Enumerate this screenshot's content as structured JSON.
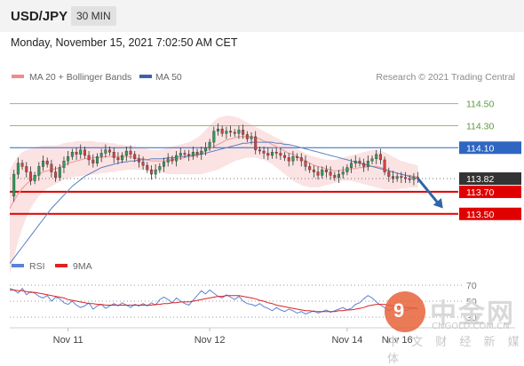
{
  "header": {
    "pair": "USD/JPY",
    "timeframe": "30 MIN",
    "datetime": "Monday, November 15, 2021 7:02:50 AM CET"
  },
  "legend": {
    "items": [
      {
        "label": "MA 20 + Bollinger Bands",
        "color": "#f28b8b"
      },
      {
        "label": "MA 50",
        "color": "#3a62a8"
      }
    ],
    "credit": "Research © 2021 Trading Central"
  },
  "colors": {
    "up_candle": "#2e9e5a",
    "down_candle": "#d94040",
    "band_fill": "#fbe0e0",
    "ma20": "#f0a0a0",
    "ma50": "#5a7fc0",
    "resistance_green": "#8cc06a",
    "pivot_blue": "#2f66c2",
    "support_red": "#e00000",
    "current_price": "#333333",
    "arrow": "#2f66a8",
    "rsi": "#5b82d6",
    "rsi_ma": "#dd2222"
  },
  "chart_data": [
    {
      "type": "candlestick",
      "instrument": "USD/JPY",
      "ylim": [
        113.2,
        114.65
      ],
      "x_range": [
        0,
        100
      ],
      "x_ticks": [
        {
          "label": "Nov 11",
          "x": 14
        },
        {
          "label": "Nov 12",
          "x": 48
        },
        {
          "label": "Nov 14",
          "x": 81
        },
        {
          "label": "Nov 16",
          "x": 93
        }
      ],
      "levels": [
        {
          "value": 114.5,
          "label": "114.50",
          "role": "resistance",
          "color": "#8cc06a",
          "style": "thin"
        },
        {
          "value": 114.3,
          "label": "114.30",
          "role": "resistance",
          "color": "#8cc06a",
          "style": "thin"
        },
        {
          "value": 114.1,
          "label": "114.10",
          "role": "pivot",
          "color": "#2f66c2",
          "style": "thin"
        },
        {
          "value": 113.82,
          "label": "113.82",
          "role": "current",
          "color": "#333333",
          "style": "dotted"
        },
        {
          "value": 113.7,
          "label": "113.70",
          "role": "support",
          "color": "#e00000",
          "style": "thick"
        },
        {
          "value": 113.5,
          "label": "113.50",
          "role": "support",
          "color": "#e00000",
          "style": "thick"
        }
      ],
      "close": [
        113.66,
        113.86,
        113.96,
        113.93,
        113.88,
        113.8,
        113.85,
        113.93,
        113.98,
        113.95,
        113.88,
        113.83,
        113.92,
        113.98,
        114.02,
        114.06,
        114.04,
        114.08,
        114.03,
        113.99,
        113.96,
        114.02,
        114.05,
        114.08,
        114.06,
        114.01,
        113.99,
        114.03,
        114.07,
        114.04,
        114.0,
        113.97,
        113.94,
        113.9,
        113.86,
        113.9,
        113.93,
        113.97,
        114.0,
        113.98,
        114.03,
        114.05,
        114.04,
        114.03,
        114.06,
        114.04,
        114.07,
        114.1,
        114.15,
        114.25,
        114.27,
        114.23,
        114.25,
        114.24,
        114.23,
        114.26,
        114.22,
        114.18,
        114.2,
        114.08,
        114.07,
        114.05,
        114.03,
        114.06,
        114.05,
        114.03,
        114.01,
        113.98,
        114.02,
        114.01,
        113.98,
        113.93,
        113.9,
        113.88,
        113.85,
        113.9,
        113.88,
        113.85,
        113.83,
        113.86,
        113.88,
        113.92,
        113.96,
        113.98,
        113.96,
        113.93,
        113.98,
        114.0,
        114.04,
        113.99,
        113.88,
        113.84,
        113.82,
        113.84,
        113.83,
        113.82,
        113.81,
        113.83,
        113.82
      ],
      "ma20": [
        113.55,
        113.62,
        113.68,
        113.73,
        113.77,
        113.8,
        113.83,
        113.86,
        113.88,
        113.89,
        113.9,
        113.91,
        113.92,
        113.94,
        113.96,
        113.97,
        113.98,
        113.99,
        114.0,
        114.0,
        114.01,
        114.01,
        114.01,
        114.02,
        114.02,
        114.02,
        114.02,
        114.02,
        114.02,
        114.02,
        114.01,
        114.0,
        114.0,
        113.99,
        113.98,
        113.98,
        113.98,
        113.98,
        113.98,
        113.99,
        114.0,
        114.0,
        114.01,
        114.02,
        114.02,
        114.03,
        114.05,
        114.07,
        114.09,
        114.11,
        114.13,
        114.15,
        114.17,
        114.18,
        114.19,
        114.2,
        114.2,
        114.2,
        114.2,
        114.19,
        114.18,
        114.16,
        114.15,
        114.13,
        114.11,
        114.09,
        114.07,
        114.05,
        114.04,
        114.02,
        114.0,
        113.98,
        113.96,
        113.94,
        113.93,
        113.92,
        113.91,
        113.9,
        113.89,
        113.89,
        113.9,
        113.9,
        113.91,
        113.91,
        113.92,
        113.92,
        113.93,
        113.93,
        113.93,
        113.92,
        113.91,
        113.89,
        113.88,
        113.87,
        113.86,
        113.85,
        113.85,
        113.84,
        113.84
      ],
      "ma50": [
        113.05,
        113.1,
        113.15,
        113.2,
        113.25,
        113.3,
        113.35,
        113.4,
        113.45,
        113.5,
        113.55,
        113.59,
        113.63,
        113.67,
        113.71,
        113.75,
        113.78,
        113.81,
        113.84,
        113.86,
        113.88,
        113.9,
        113.92,
        113.93,
        113.94,
        113.95,
        113.96,
        113.97,
        113.97,
        113.98,
        113.98,
        113.99,
        113.99,
        113.99,
        114.0,
        114.0,
        114.0,
        114.0,
        114.01,
        114.01,
        114.01,
        114.02,
        114.02,
        114.03,
        114.03,
        114.04,
        114.04,
        114.05,
        114.06,
        114.07,
        114.08,
        114.09,
        114.1,
        114.11,
        114.12,
        114.13,
        114.14,
        114.14,
        114.15,
        114.15,
        114.15,
        114.15,
        114.15,
        114.15,
        114.14,
        114.14,
        114.13,
        114.13,
        114.12,
        114.11,
        114.1,
        114.09,
        114.08,
        114.07,
        114.06,
        114.05,
        114.04,
        114.03,
        114.02,
        114.01,
        114.0,
        113.99,
        113.98,
        113.97,
        113.96,
        113.95,
        113.94,
        113.93,
        113.92,
        113.91,
        113.9,
        113.89,
        113.88,
        113.87,
        113.86,
        113.85,
        113.84,
        113.83,
        113.82
      ],
      "band_upper": [
        113.9,
        113.97,
        114.02,
        114.06,
        114.08,
        114.09,
        114.1,
        114.11,
        114.12,
        114.12,
        114.12,
        114.12,
        114.13,
        114.14,
        114.15,
        114.15,
        114.16,
        114.16,
        114.16,
        114.16,
        114.16,
        114.15,
        114.15,
        114.15,
        114.14,
        114.14,
        114.13,
        114.13,
        114.12,
        114.12,
        114.11,
        114.1,
        114.1,
        114.09,
        114.08,
        114.08,
        114.08,
        114.09,
        114.1,
        114.11,
        114.12,
        114.13,
        114.14,
        114.15,
        114.17,
        114.19,
        114.22,
        114.26,
        114.3,
        114.34,
        114.37,
        114.38,
        114.39,
        114.39,
        114.38,
        114.37,
        114.35,
        114.33,
        114.31,
        114.29,
        114.27,
        114.25,
        114.23,
        114.21,
        114.19,
        114.17,
        114.15,
        114.13,
        114.11,
        114.09,
        114.07,
        114.05,
        114.03,
        114.02,
        114.01,
        114.0,
        113.99,
        113.99,
        113.99,
        114.0,
        114.01,
        114.02,
        114.03,
        114.04,
        114.05,
        114.06,
        114.07,
        114.08,
        114.08,
        114.07,
        114.06,
        114.04,
        114.02,
        114.0,
        113.98,
        113.97,
        113.96,
        113.95,
        113.94
      ],
      "band_lower": [
        112.95,
        113.1,
        113.25,
        113.37,
        113.47,
        113.55,
        113.61,
        113.66,
        113.7,
        113.73,
        113.75,
        113.77,
        113.79,
        113.81,
        113.82,
        113.83,
        113.84,
        113.84,
        113.85,
        113.85,
        113.86,
        113.86,
        113.87,
        113.87,
        113.88,
        113.88,
        113.89,
        113.89,
        113.9,
        113.9,
        113.9,
        113.9,
        113.9,
        113.89,
        113.88,
        113.88,
        113.88,
        113.87,
        113.86,
        113.86,
        113.86,
        113.86,
        113.86,
        113.86,
        113.86,
        113.86,
        113.86,
        113.87,
        113.88,
        113.89,
        113.9,
        113.92,
        113.94,
        113.96,
        113.98,
        113.99,
        114.0,
        114.01,
        114.01,
        114.01,
        114.0,
        113.99,
        113.97,
        113.95,
        113.92,
        113.89,
        113.86,
        113.83,
        113.8,
        113.78,
        113.76,
        113.75,
        113.74,
        113.74,
        113.74,
        113.75,
        113.76,
        113.77,
        113.78,
        113.79,
        113.8,
        113.8,
        113.8,
        113.79,
        113.78,
        113.77,
        113.76,
        113.75,
        113.74,
        113.73,
        113.72,
        113.72,
        113.72,
        113.72,
        113.73,
        113.73,
        113.74,
        113.74,
        113.74
      ],
      "projection": {
        "from": 113.82,
        "to": 113.55,
        "x_from": 98,
        "x_to": 104
      }
    },
    {
      "type": "line",
      "legend": [
        "RSI",
        "9MA"
      ],
      "ylim": [
        20,
        80
      ],
      "ticks": [
        "70",
        "50",
        "30"
      ],
      "series": [
        {
          "name": "RSI",
          "values": [
            66,
            64,
            60,
            66,
            58,
            62,
            60,
            56,
            54,
            57,
            50,
            55,
            53,
            48,
            46,
            50,
            45,
            42,
            44,
            48,
            40,
            44,
            46,
            41,
            44,
            47,
            44,
            48,
            45,
            42,
            46,
            44,
            47,
            44,
            48,
            45,
            52,
            55,
            52,
            48,
            54,
            50,
            47,
            45,
            51,
            57,
            63,
            59,
            64,
            60,
            56,
            54,
            58,
            55,
            52,
            56,
            50,
            47,
            46,
            44,
            47,
            43,
            41,
            38,
            42,
            39,
            37,
            40,
            38,
            35,
            37,
            34,
            36,
            38,
            35,
            37,
            39,
            36,
            38,
            40,
            42,
            39,
            41,
            46,
            48,
            53,
            57,
            54,
            49,
            45,
            42,
            38,
            41,
            44,
            41,
            38,
            40,
            42,
            40
          ]
        },
        {
          "name": "9MA",
          "values": [
            64,
            64,
            63,
            63,
            62,
            61,
            61,
            60,
            59,
            58,
            57,
            56,
            55,
            54,
            52,
            51,
            50,
            49,
            48,
            47,
            47,
            46,
            46,
            45,
            45,
            45,
            45,
            45,
            45,
            45,
            45,
            45,
            45,
            45,
            45,
            46,
            46,
            47,
            47,
            48,
            48,
            49,
            49,
            49,
            50,
            51,
            52,
            53,
            54,
            55,
            56,
            56,
            57,
            57,
            57,
            57,
            56,
            55,
            54,
            53,
            51,
            50,
            48,
            47,
            45,
            44,
            43,
            42,
            41,
            40,
            39,
            38,
            38,
            37,
            37,
            37,
            37,
            37,
            37,
            38,
            38,
            39,
            39,
            40,
            41,
            42,
            44,
            45,
            46,
            46,
            46,
            45,
            44,
            44,
            43,
            42,
            42,
            41,
            41
          ]
        }
      ]
    }
  ],
  "watermark": {
    "icon_char": "9",
    "big": "中金网",
    "small": "中 文 财 经 新 媒 体",
    "url": "CNGOLD.COM.CN"
  }
}
